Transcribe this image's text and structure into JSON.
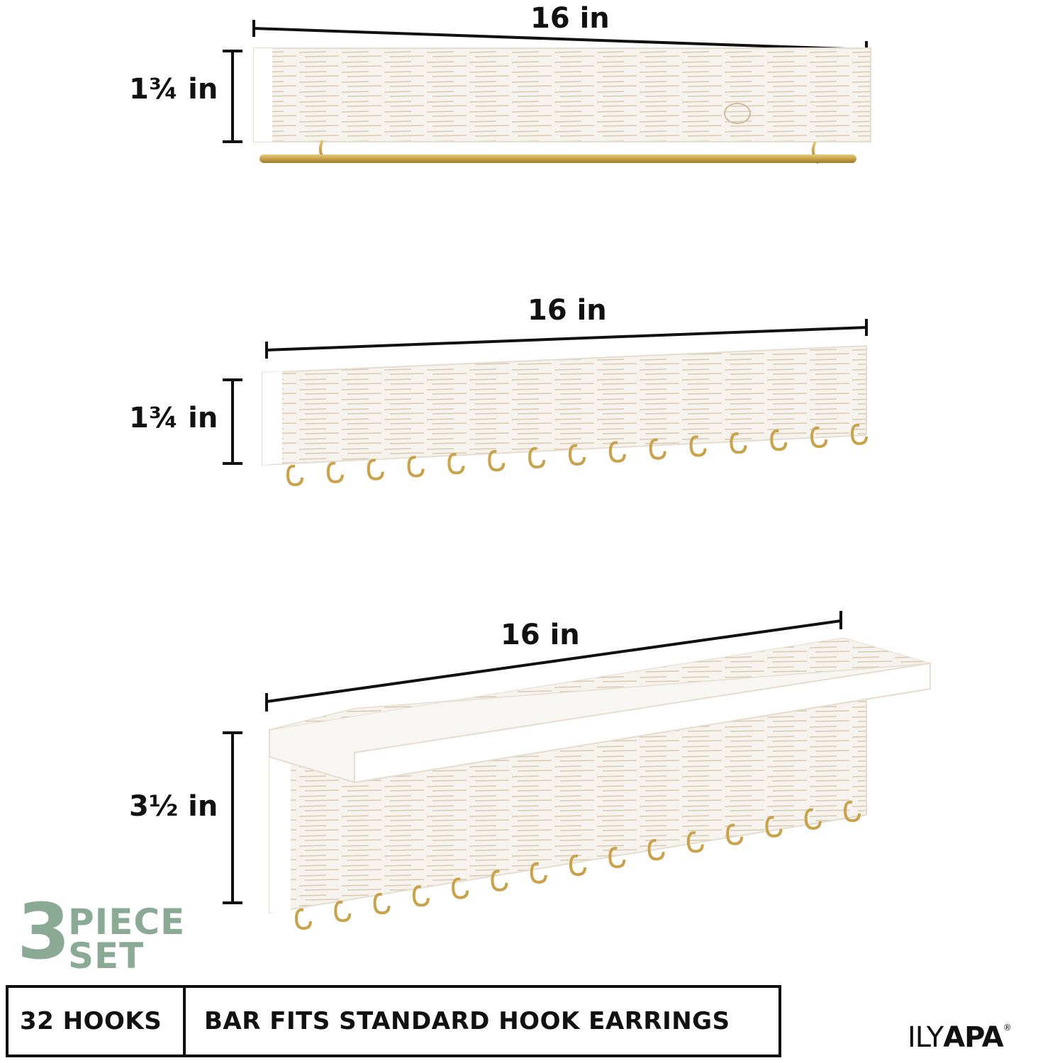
{
  "dimensions": {
    "shelf1_width": "16 in",
    "shelf1_height": "1¾ in",
    "shelf2_width": "16 in",
    "shelf2_height": "1¾ in",
    "shelf3_width": "16 in",
    "shelf3_height": "3½ in"
  },
  "badge": {
    "number": "3",
    "word1": "PIECE",
    "word2": "SET"
  },
  "info": {
    "hooks": "32 HOOKS",
    "bar": "BAR FITS STANDARD HOOK EARRINGS"
  },
  "brand": {
    "part1": "ILY",
    "part2": "APA",
    "mark": "®"
  },
  "colors": {
    "accent_green": "#8aaa96",
    "brass": "#c9a24a",
    "wood_white": "#f4f1ec"
  }
}
